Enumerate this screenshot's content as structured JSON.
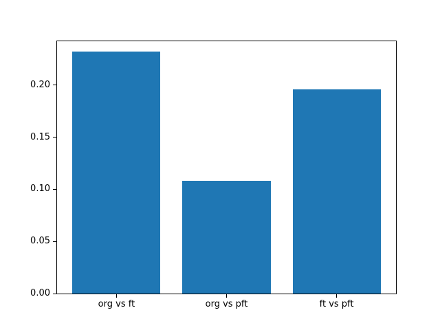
{
  "chart_data": {
    "type": "bar",
    "categories": [
      "org vs ft",
      "org vs pft",
      "ft vs pft"
    ],
    "values": [
      0.232,
      0.108,
      0.196
    ],
    "title": "",
    "xlabel": "",
    "ylabel": "",
    "ylim": [
      0,
      0.242
    ],
    "yticks": [
      0,
      0.05,
      0.1,
      0.15,
      0.2
    ],
    "ytick_labels": [
      "0.00",
      "0.05",
      "0.10",
      "0.15",
      "0.20"
    ],
    "bar_color": "#1f77b4",
    "background_color": "#ffffff",
    "axis_color": "#000000",
    "grid": false,
    "legend": false
  }
}
